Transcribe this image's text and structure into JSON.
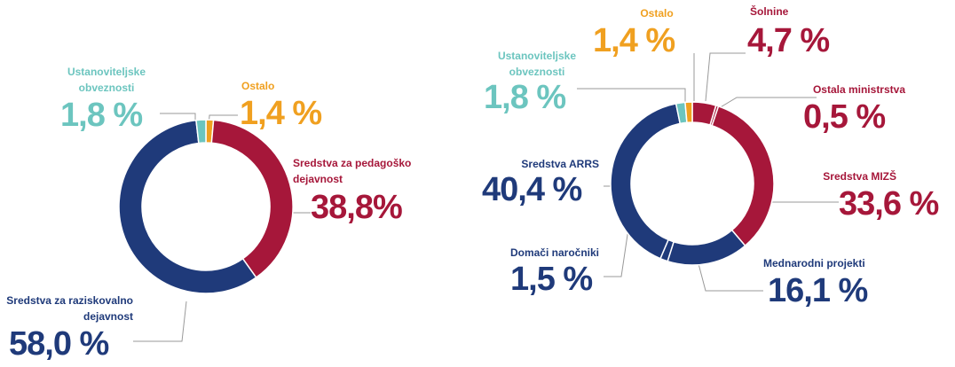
{
  "chart_data": [
    {
      "type": "donut",
      "categories": [
        "Ostalo",
        "Sredstva za pedagoško dejavnost",
        "Sredstva za raziskovalno  dejavnost",
        "Ustanoviteljske obveznosti"
      ],
      "values": [
        1.4,
        38.8,
        58.0,
        1.8
      ],
      "value_labels": [
        "1,4 %",
        "38,8%",
        "58,0 %",
        "1,8 %"
      ],
      "colors": [
        "#f0a020",
        "#a6173a",
        "#1f3a7a",
        "#6cc5bf"
      ]
    },
    {
      "type": "donut",
      "categories": [
        "Šolnine",
        "Ostala ministrstva",
        "Sredstva MIZŠ",
        "Mednarodni projekti",
        "Domači naročniki",
        "Sredstva ARRS",
        "Ustanoviteljske obveznosti",
        "Ostalo"
      ],
      "values": [
        4.7,
        0.5,
        33.6,
        16.1,
        1.5,
        40.4,
        1.8,
        1.4
      ],
      "value_labels": [
        "4,7 %",
        "0,5 %",
        "33,6 %",
        "16,1 %",
        "1,5 %",
        "40,4 %",
        "1,8 %",
        "1,4 %"
      ],
      "colors": [
        "#a6173a",
        "#a6173a",
        "#a6173a",
        "#1f3a7a",
        "#1f3a7a",
        "#1f3a7a",
        "#6cc5bf",
        "#f0a020"
      ]
    }
  ]
}
